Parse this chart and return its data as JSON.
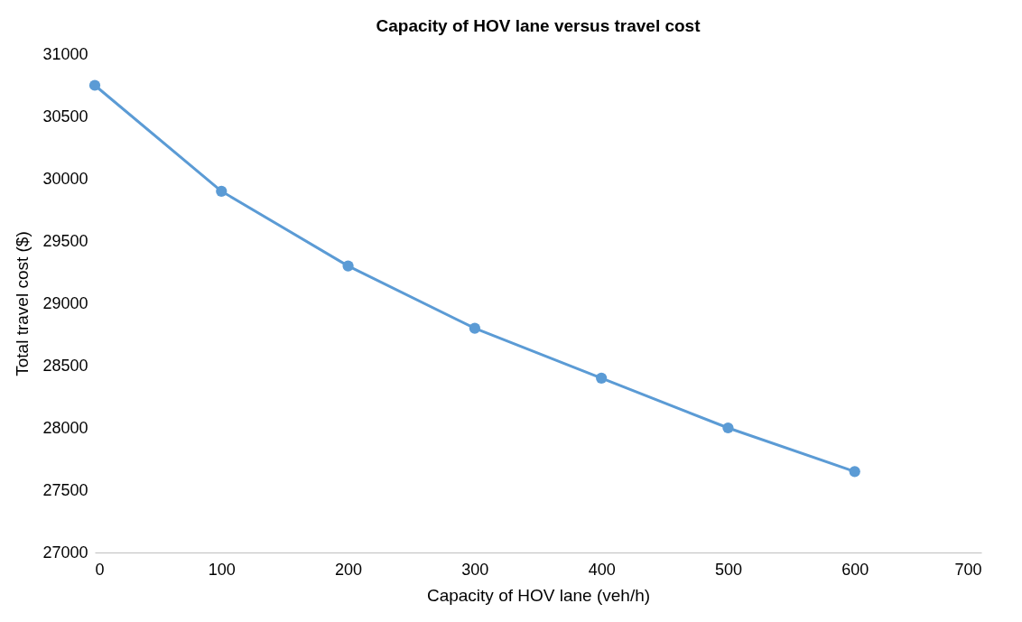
{
  "chart_data": {
    "type": "line",
    "title": "Capacity of HOV lane versus travel cost",
    "xlabel": "Capacity of HOV lane (veh/h)",
    "ylabel": "Total travel cost ($)",
    "x": [
      0,
      100,
      200,
      300,
      400,
      500,
      600
    ],
    "series": [
      {
        "color": "#5b9bd5",
        "values": [
          30750,
          29900,
          29300,
          28800,
          28400,
          28000,
          27650
        ]
      }
    ],
    "xlim": [
      0,
      700
    ],
    "xticks": [
      0,
      100,
      200,
      300,
      400,
      500,
      600,
      700
    ],
    "ylim": [
      27000,
      31000
    ],
    "yticks": [
      27000,
      27500,
      28000,
      28500,
      29000,
      29500,
      30000,
      30500,
      31000
    ],
    "grid": false,
    "legend": false,
    "marker": "circle",
    "line_style": "solid"
  }
}
